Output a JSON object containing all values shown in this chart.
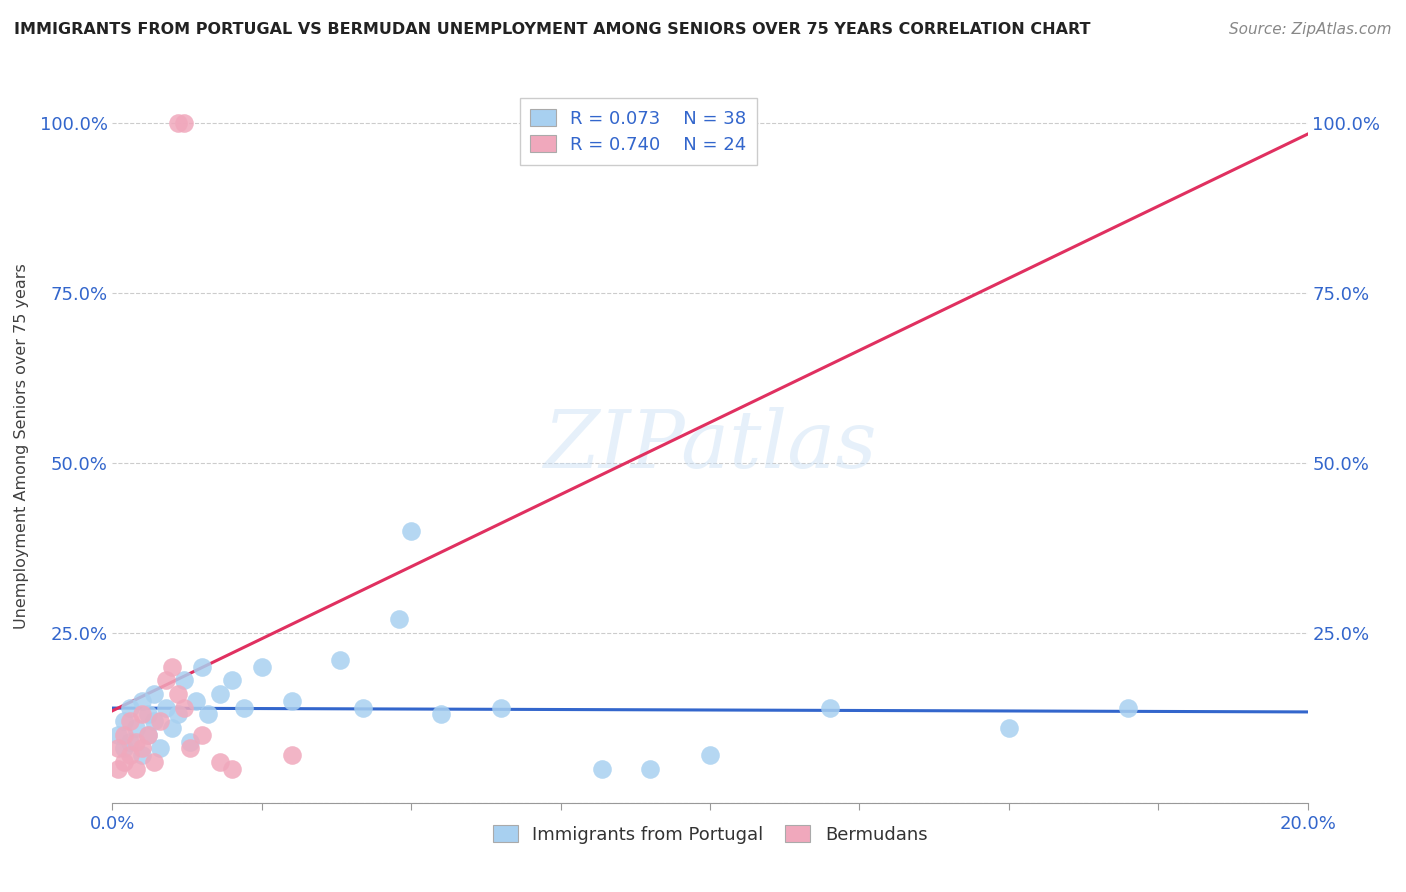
{
  "title": "IMMIGRANTS FROM PORTUGAL VS BERMUDAN UNEMPLOYMENT AMONG SENIORS OVER 75 YEARS CORRELATION CHART",
  "source": "Source: ZipAtlas.com",
  "ylabel": "Unemployment Among Seniors over 75 years",
  "legend1_r": "0.073",
  "legend1_n": "38",
  "legend2_r": "0.740",
  "legend2_n": "24",
  "blue_color": "#a8d0f0",
  "pink_color": "#f0a8bc",
  "blue_line_color": "#3366cc",
  "pink_line_color": "#e03060",
  "title_color": "#222222",
  "source_color": "#888888",
  "watermark": "ZIPatlas",
  "blue_scatter_x": [
    0.001,
    0.002,
    0.002,
    0.003,
    0.003,
    0.004,
    0.005,
    0.005,
    0.006,
    0.006,
    0.007,
    0.007,
    0.008,
    0.009,
    0.01,
    0.011,
    0.012,
    0.013,
    0.014,
    0.015,
    0.016,
    0.018,
    0.02,
    0.022,
    0.025,
    0.03,
    0.038,
    0.042,
    0.048,
    0.05,
    0.055,
    0.065,
    0.082,
    0.09,
    0.1,
    0.12,
    0.15,
    0.17
  ],
  "blue_scatter_y": [
    0.1,
    0.12,
    0.08,
    0.14,
    0.09,
    0.11,
    0.15,
    0.07,
    0.13,
    0.1,
    0.12,
    0.16,
    0.08,
    0.14,
    0.11,
    0.13,
    0.18,
    0.09,
    0.15,
    0.2,
    0.13,
    0.16,
    0.18,
    0.14,
    0.2,
    0.15,
    0.21,
    0.14,
    0.27,
    0.4,
    0.13,
    0.14,
    0.05,
    0.05,
    0.07,
    0.14,
    0.11,
    0.14
  ],
  "pink_scatter_x": [
    0.001,
    0.001,
    0.002,
    0.002,
    0.003,
    0.003,
    0.004,
    0.004,
    0.005,
    0.005,
    0.006,
    0.007,
    0.008,
    0.009,
    0.01,
    0.011,
    0.012,
    0.013,
    0.015,
    0.018,
    0.02,
    0.03,
    0.011,
    0.012
  ],
  "pink_scatter_y": [
    0.05,
    0.08,
    0.06,
    0.1,
    0.07,
    0.12,
    0.09,
    0.05,
    0.08,
    0.13,
    0.1,
    0.06,
    0.12,
    0.18,
    0.2,
    0.16,
    0.14,
    0.08,
    0.1,
    0.06,
    0.05,
    0.07,
    1.0,
    1.0
  ],
  "xlim": [
    0.0,
    0.2
  ],
  "ylim": [
    0.0,
    1.05
  ],
  "xtick_positions": [
    0.0,
    0.025,
    0.05,
    0.075,
    0.1,
    0.125,
    0.15,
    0.175,
    0.2
  ],
  "xtick_labels": [
    "0.0%",
    "",
    "",
    "",
    "",
    "",
    "",
    "",
    "20.0%"
  ],
  "ytick_positions": [
    0.0,
    0.25,
    0.5,
    0.75,
    1.0
  ],
  "ytick_labels": [
    "",
    "25.0%",
    "50.0%",
    "75.0%",
    "100.0%"
  ]
}
